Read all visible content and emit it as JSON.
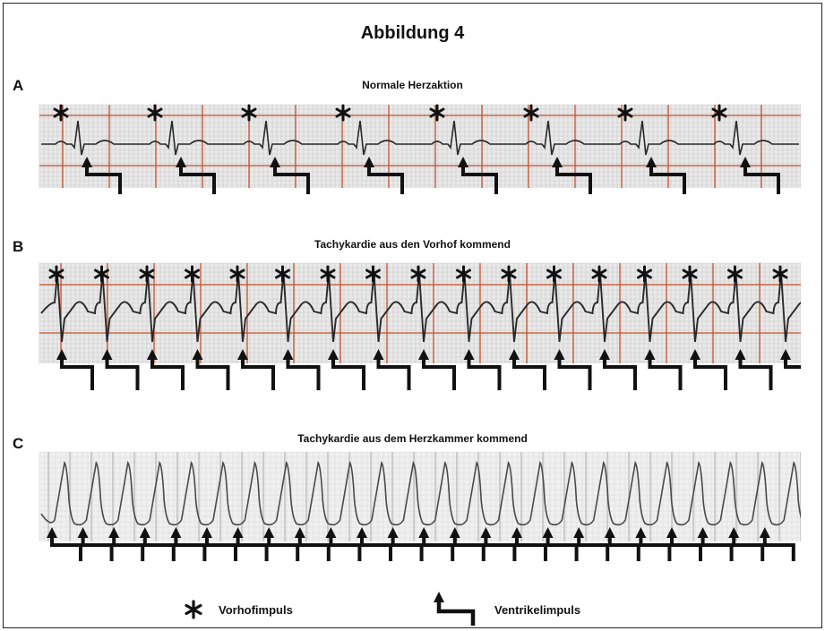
{
  "figure": {
    "title": "Abbildung 4"
  },
  "panels": [
    {
      "letter": "A",
      "title": "Normale Herzaktion"
    },
    {
      "letter": "B",
      "title": "Tachykardie aus den Vorhof kommend"
    },
    {
      "letter": "C",
      "title": "Tachykardie aus dem Herzkammer kommend"
    }
  ],
  "legend": {
    "atrial_label": "Vorhofimpuls",
    "ventricular_label": "Ventrikelimpuls"
  },
  "icons": {
    "atrial_impulse": "asterisk-icon",
    "ventricular_impulse": "arrow-up-right-icon"
  },
  "colors": {
    "grid_major": "#c8502a",
    "grid_minor": "#c9c9c9",
    "grid_c": "#b9b9b9",
    "trace": "#2a2a2a",
    "paper": "#e9e9e9",
    "paper_c": "#f0f0f0"
  },
  "beats": {
    "A": 8,
    "B": 17,
    "C": 24
  }
}
